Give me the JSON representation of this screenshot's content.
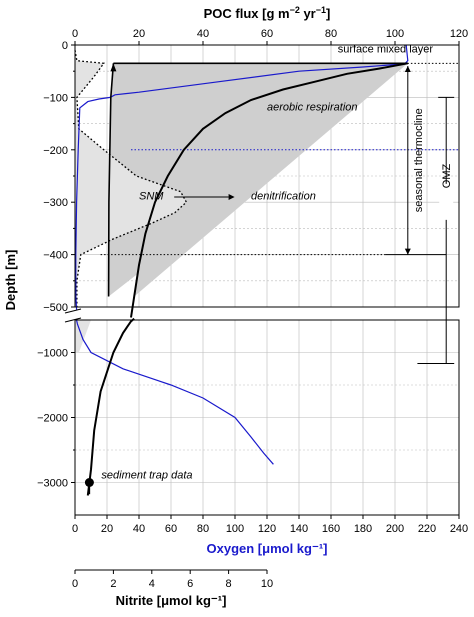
{
  "chart_data": {
    "type": "line",
    "axes": {
      "poc_flux": {
        "title_main": "POC flux [g m",
        "title_exp1": "−2",
        "title_mid": " yr",
        "title_exp2": "−1",
        "title_end": "]",
        "range": [
          0,
          120
        ],
        "ticks": [
          "0",
          "20",
          "40",
          "60",
          "80",
          "100",
          "120"
        ]
      },
      "oxygen": {
        "title": "Oxygen [μmol kg⁻¹]",
        "color": "#1a1acc",
        "range": [
          0,
          240
        ],
        "ticks": [
          "0",
          "20",
          "40",
          "60",
          "80",
          "100",
          "120",
          "140",
          "160",
          "180",
          "200",
          "220",
          "240"
        ]
      },
      "nitrite": {
        "title": "Nitrite [μmol kg⁻¹]",
        "range": [
          0,
          10
        ],
        "ticks": [
          "0",
          "2",
          "4",
          "6",
          "8",
          "10"
        ]
      },
      "depth": {
        "title": "Depth [m]",
        "upper_range": [
          0,
          -500
        ],
        "upper_ticks": [
          "0",
          "−100",
          "−200",
          "−300",
          "−400",
          "−500"
        ],
        "lower_range": [
          -500,
          -3500
        ],
        "lower_ticks": [
          "−1000",
          "−2000",
          "−3000"
        ]
      }
    },
    "series": [
      {
        "key": "poc",
        "color": "#000000",
        "points": [
          [
            104,
            -35
          ],
          [
            95,
            -45
          ],
          [
            85,
            -55
          ],
          [
            75,
            -70
          ],
          [
            65,
            -85
          ],
          [
            55,
            -105
          ],
          [
            47,
            -130
          ],
          [
            40,
            -160
          ],
          [
            34,
            -200
          ],
          [
            29,
            -250
          ],
          [
            25,
            -300
          ],
          [
            22,
            -360
          ],
          [
            20,
            -420
          ],
          [
            18.5,
            -480
          ],
          [
            17.5,
            -520
          ],
          [
            15,
            -700
          ],
          [
            12,
            -1000
          ],
          [
            8,
            -1600
          ],
          [
            6,
            -2200
          ],
          [
            5,
            -2800
          ],
          [
            4,
            -3200
          ]
        ]
      },
      {
        "key": "poc_mixed_layer",
        "color": "#000000",
        "points": [
          [
            10.5,
            -480
          ],
          [
            10.6,
            -300
          ],
          [
            11.2,
            -100
          ],
          [
            12,
            -35
          ],
          [
            104,
            -35
          ]
        ]
      },
      {
        "key": "oxygen",
        "color": "#1a1acc",
        "points": [
          [
            207,
            0
          ],
          [
            208,
            -30
          ],
          [
            206,
            -36
          ],
          [
            180,
            -42
          ],
          [
            140,
            -50
          ],
          [
            90,
            -70
          ],
          [
            40,
            -90
          ],
          [
            25,
            -95
          ],
          [
            22,
            -100
          ],
          [
            15,
            -103
          ],
          [
            8,
            -108
          ],
          [
            3,
            -120
          ],
          [
            2,
            -200
          ],
          [
            1,
            -300
          ],
          [
            0.5,
            -400
          ],
          [
            0.5,
            -480
          ],
          [
            1,
            -505
          ],
          [
            1.5,
            -560
          ],
          [
            5,
            -800
          ],
          [
            10,
            -1000
          ],
          [
            30,
            -1250
          ],
          [
            60,
            -1500
          ],
          [
            80,
            -1700
          ],
          [
            100,
            -2000
          ],
          [
            110,
            -2300
          ],
          [
            118,
            -2550
          ],
          [
            124,
            -2720
          ]
        ]
      },
      {
        "key": "nitrite",
        "color": "#000000",
        "points": [
          [
            0,
            -10
          ],
          [
            0.1,
            -30
          ],
          [
            1.5,
            -35
          ],
          [
            1,
            -60
          ],
          [
            0.1,
            -100
          ],
          [
            0.2,
            -160
          ],
          [
            1.5,
            -200
          ],
          [
            3.2,
            -250
          ],
          [
            5.5,
            -280
          ],
          [
            5.8,
            -300
          ],
          [
            5.2,
            -320
          ],
          [
            4,
            -340
          ],
          [
            2,
            -370
          ],
          [
            0.3,
            -400
          ],
          [
            0.1,
            -450
          ],
          [
            0.1,
            -500
          ]
        ]
      }
    ],
    "reference_lines": [
      {
        "depth": -35,
        "style": "dotted",
        "color": "#000000"
      },
      {
        "depth": -200,
        "style": "dotted",
        "color": "#1a1acc"
      },
      {
        "depth": -400,
        "style": "dotted",
        "color": "#000000"
      }
    ],
    "sediment_trap": {
      "poc": 4.5,
      "depth": -3000,
      "label": "sediment trap data"
    },
    "annotations": {
      "surface_mixed_layer": "surface mixed   layer",
      "aerobic_respiration": "aerobic respiration",
      "snm": "SNM",
      "denitrification": "denitrification",
      "seasonal_thermocline": "seasonal thermocline",
      "omz": "OMZ"
    }
  }
}
